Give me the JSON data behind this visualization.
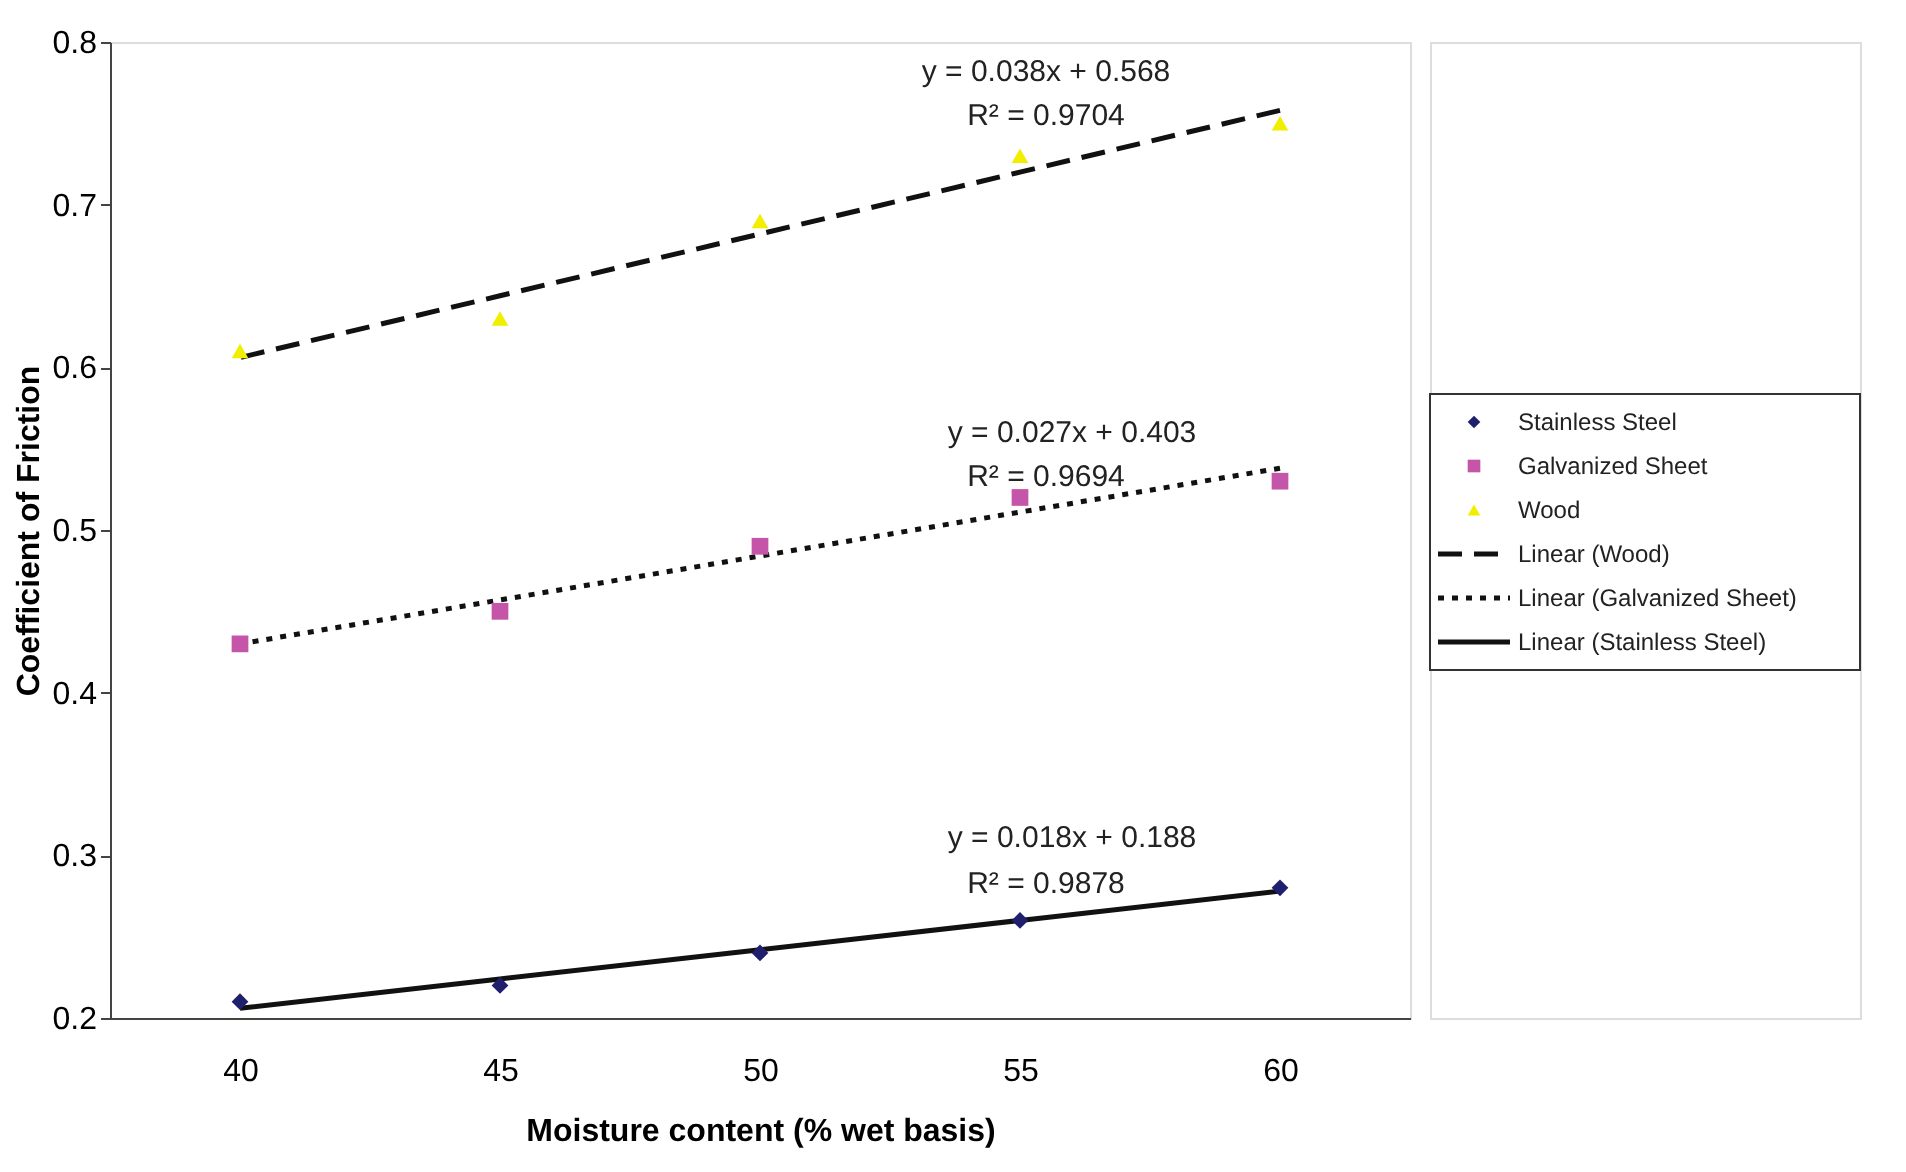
{
  "chart_data": {
    "type": "scatter",
    "xlabel": "Moisture content (% wet basis)",
    "ylabel": "Coefficient of Friction",
    "categories": [
      "40",
      "45",
      "50",
      "55",
      "60"
    ],
    "ylim": [
      0.2,
      0.8
    ],
    "yticks": [
      0.2,
      0.3,
      0.4,
      0.5,
      0.6,
      0.7,
      0.8
    ],
    "grid": false,
    "legend": "right",
    "series": [
      {
        "name": "Stainless Steel",
        "marker": "diamond",
        "color": "#1f1f6e",
        "values": [
          0.21,
          0.22,
          0.24,
          0.26,
          0.28
        ]
      },
      {
        "name": "Galvanized Sheet",
        "marker": "square",
        "color": "#c455a8",
        "values": [
          0.43,
          0.45,
          0.49,
          0.52,
          0.53
        ]
      },
      {
        "name": "Wood",
        "marker": "triangle",
        "color": "#f2ee00",
        "values": [
          0.61,
          0.63,
          0.69,
          0.73,
          0.75
        ]
      },
      {
        "name": "Linear (Wood)",
        "type": "line",
        "line_style": "dashed",
        "color": "#111111",
        "values": [
          0.606,
          0.644,
          0.682,
          0.72,
          0.758
        ]
      },
      {
        "name": "Linear (Galvanized Sheet)",
        "type": "line",
        "line_style": "dotted",
        "color": "#111111",
        "values": [
          0.43,
          0.457,
          0.484,
          0.511,
          0.538
        ]
      },
      {
        "name": "Linear (Stainless Steel)",
        "type": "line",
        "line_style": "solid",
        "color": "#111111",
        "values": [
          0.206,
          0.224,
          0.242,
          0.26,
          0.278
        ]
      }
    ],
    "annotations": [
      "y = 0.038x + 0.568",
      "R² = 0.9704",
      "y = 0.027x + 0.403",
      "R² = 0.9694",
      "y = 0.018x + 0.188",
      "R² = 0.9878"
    ]
  }
}
